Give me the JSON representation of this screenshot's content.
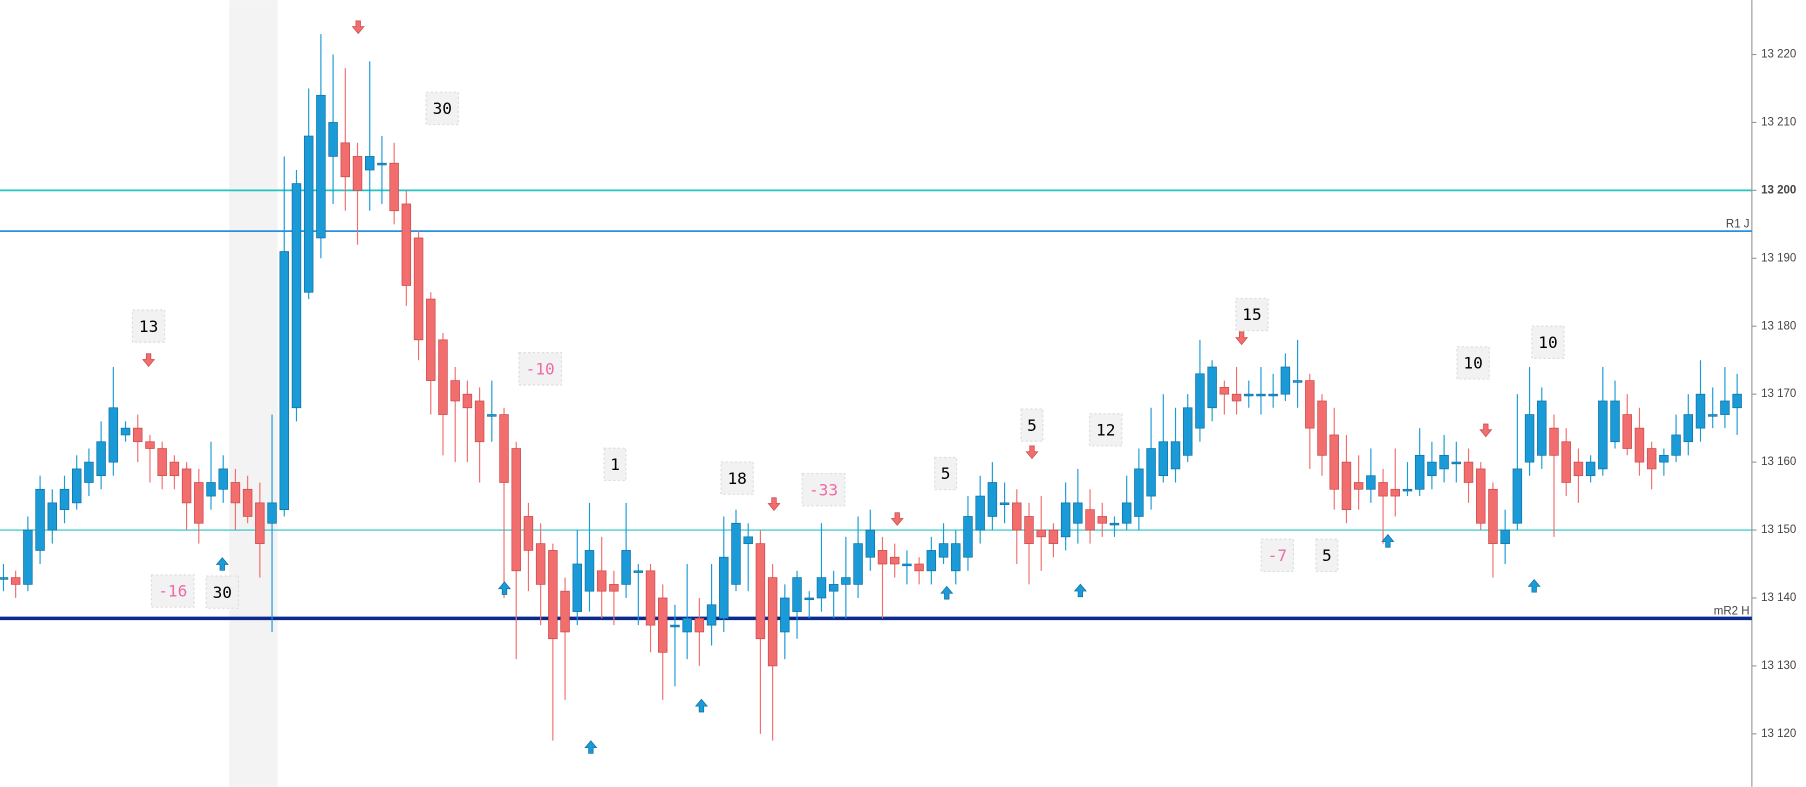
{
  "chart_data": {
    "type": "candlestick",
    "ylim": [
      13112.2,
      13228
    ],
    "yticks": [
      {
        "value": 13120,
        "label": "13 120"
      },
      {
        "value": 13130,
        "label": "13 130"
      },
      {
        "value": 13140,
        "label": "13 140"
      },
      {
        "value": 13150,
        "label": "13 150"
      },
      {
        "value": 13160,
        "label": "13 160"
      },
      {
        "value": 13170,
        "label": "13 170"
      },
      {
        "value": 13180,
        "label": "13 180"
      },
      {
        "value": 13190,
        "label": "13 190"
      },
      {
        "value": 13200,
        "label": "13 200"
      },
      {
        "value": 13210,
        "label": "13 210"
      },
      {
        "value": 13220,
        "label": "13 220"
      }
    ],
    "bold_tick": 13200,
    "up_color": "#1a9bd7",
    "down_color": "#f26d6d",
    "open": [
      13143,
      13143,
      13142,
      13147,
      13150,
      13153,
      13154,
      13157,
      13158,
      13160,
      13164,
      13165,
      13163,
      13162,
      13160,
      13159,
      13157,
      13155,
      13156,
      13157,
      13156,
      13154,
      13151,
      13153,
      13168,
      13185,
      13193,
      13205,
      13207,
      13205,
      13203,
      13204,
      13204,
      13198,
      13193,
      13184,
      13178,
      13172,
      13170,
      13169,
      13167,
      13167,
      13162,
      13152,
      13148,
      13147,
      13141,
      13138,
      13141,
      13144,
      13142,
      13142,
      13144,
      13144,
      13140,
      13136,
      13135,
      13137,
      13136,
      13137,
      13142,
      13148,
      13148,
      13143,
      13135,
      13138,
      13140,
      13140,
      13141,
      13142,
      13142,
      13146,
      13147,
      13146,
      13145,
      13145,
      13144,
      13146,
      13144,
      13146,
      13150,
      13152,
      13154,
      13154,
      13152,
      13150,
      13150,
      13149,
      13151,
      13153,
      13152,
      13151,
      13151,
      13152,
      13155,
      13158,
      13159,
      13161,
      13165,
      13168,
      13171,
      13170,
      13170,
      13170,
      13170,
      13170,
      13172,
      13172,
      13169,
      13164,
      13160,
      13157,
      13156,
      13157,
      13156,
      13156,
      13156,
      13158,
      13159,
      13160,
      13160,
      13159,
      13156,
      13148,
      13151,
      13160,
      13161,
      13165,
      13163,
      13160,
      13158,
      13159,
      13163,
      13167,
      13165,
      13162,
      13160,
      13161,
      13163,
      13165,
      13167,
      13167,
      13168
    ],
    "high": [
      13145,
      13144,
      13152,
      13158,
      13156,
      13158,
      13161,
      13162,
      13166,
      13174,
      13166,
      13167,
      13164,
      13163,
      13161,
      13160,
      13159,
      13163,
      13161,
      13159,
      13158,
      13157,
      13167,
      13205,
      13203,
      13215,
      13223,
      13220,
      13218,
      13207,
      13219,
      13208,
      13207,
      13200,
      13194,
      13185,
      13179,
      13174,
      13172,
      13171,
      13172,
      13168,
      13163,
      13154,
      13151,
      13148,
      13143,
      13150,
      13154,
      13149,
      13144,
      13154,
      13145,
      13145,
      13142,
      13139,
      13145,
      13140,
      13145,
      13152,
      13153,
      13151,
      13150,
      13145,
      13142,
      13144,
      13141,
      13151,
      13144,
      13149,
      13152,
      13153,
      13149,
      13148,
      13147,
      13146,
      13149,
      13151,
      13150,
      13155,
      13158,
      13160,
      13157,
      13156,
      13154,
      13155,
      13151,
      13157,
      13159,
      13156,
      13154,
      13152,
      13158,
      13162,
      13168,
      13170,
      13168,
      13170,
      13178,
      13175,
      13172,
      13174,
      13172,
      13174,
      13173,
      13176,
      13178,
      13173,
      13170,
      13168,
      13164,
      13161,
      13162,
      13159,
      13162,
      13160,
      13165,
      13163,
      13164,
      13163,
      13162,
      13160,
      13157,
      13153,
      13170,
      13174,
      13171,
      13167,
      13165,
      13162,
      13161,
      13174,
      13172,
      13170,
      13168,
      13163,
      13162,
      13167,
      13170,
      13175,
      13171,
      13174,
      13173
    ],
    "low": [
      13141,
      13140,
      13141,
      13145,
      13148,
      13151,
      13153,
      13155,
      13156,
      13158,
      13163,
      13160,
      13157,
      13156,
      13156,
      13150,
      13148,
      13153,
      13154,
      13150,
      13151,
      13143,
      13135,
      13152,
      13166,
      13184,
      13190,
      13198,
      13197,
      13192,
      13197,
      13198,
      13195,
      13183,
      13175,
      13167,
      13161,
      13160,
      13160,
      13157,
      13163,
      13140,
      13131,
      13141,
      13136,
      13119,
      13125,
      13136,
      13138,
      13137,
      13136,
      13140,
      13136,
      13132,
      13125,
      13127,
      13131,
      13130,
      13133,
      13135,
      13141,
      13141,
      13120,
      13119,
      13131,
      13134,
      13137,
      13138,
      13137,
      13137,
      13140,
      13144,
      13137,
      13143,
      13142,
      13142,
      13142,
      13145,
      13142,
      13144,
      13148,
      13150,
      13151,
      13145,
      13142,
      13144,
      13146,
      13147,
      13148,
      13148,
      13149,
      13149,
      13150,
      13150,
      13153,
      13157,
      13157,
      13160,
      13163,
      13166,
      13167,
      13167,
      13168,
      13167,
      13168,
      13169,
      13168,
      13159,
      13158,
      13153,
      13151,
      13153,
      13154,
      13148,
      13152,
      13155,
      13155,
      13156,
      13157,
      13157,
      13154,
      13150,
      13143,
      13145,
      13150,
      13158,
      13159,
      13149,
      13155,
      13154,
      13157,
      13158,
      13162,
      13161,
      13158,
      13156,
      13158,
      13160,
      13161,
      13163,
      13165,
      13165,
      13164
    ],
    "close": [
      13143,
      13142,
      13150,
      13156,
      13154,
      13156,
      13159,
      13160,
      13163,
      13168,
      13165,
      13163,
      13162,
      13158,
      13158,
      13154,
      13151,
      13157,
      13159,
      13154,
      13152,
      13148,
      13154,
      13191,
      13201,
      13208,
      13214,
      13210,
      13202,
      13200,
      13205,
      13204,
      13197,
      13186,
      13178,
      13172,
      13167,
      13169,
      13168,
      13163,
      13167,
      13157,
      13144,
      13147,
      13142,
      13134,
      13135,
      13145,
      13147,
      13141,
      13141,
      13147,
      13144,
      13136,
      13132,
      13136,
      13137,
      13135,
      13139,
      13146,
      13151,
      13149,
      13134,
      13130,
      13140,
      13143,
      13140,
      13143,
      13142,
      13143,
      13148,
      13150,
      13145,
      13145,
      13145,
      13144,
      13147,
      13148,
      13148,
      13152,
      13155,
      13157,
      13154,
      13150,
      13148,
      13149,
      13148,
      13154,
      13154,
      13150,
      13151,
      13151,
      13154,
      13159,
      13162,
      13163,
      13163,
      13168,
      13173,
      13174,
      13170,
      13169,
      13170,
      13170,
      13170,
      13174,
      13172,
      13165,
      13161,
      13156,
      13153,
      13156,
      13158,
      13155,
      13155,
      13156,
      13161,
      13160,
      13161,
      13160,
      13157,
      13151,
      13148,
      13150,
      13159,
      13167,
      13169,
      13161,
      13157,
      13158,
      13160,
      13169,
      13169,
      13162,
      13160,
      13159,
      13161,
      13164,
      13167,
      13170,
      13167,
      13169,
      13170
    ],
    "levels": [
      {
        "value": 13200,
        "color": "#22c3c3",
        "width": 1.5
      },
      {
        "value": 13194,
        "color": "#2a8fe0",
        "width": 1.5,
        "label": "R1 J"
      },
      {
        "value": 13150,
        "color": "#22c3c3",
        "width": 1
      },
      {
        "value": 13137,
        "color": "#0a2a8c",
        "width": 3,
        "label": "mR2 H"
      }
    ],
    "annotations": [
      {
        "text": "13",
        "color": "#000"
      },
      {
        "text": "-16",
        "color": "#f06aa8"
      },
      {
        "text": "30",
        "color": "#000"
      },
      {
        "text": "30",
        "color": "#000"
      },
      {
        "text": "-10",
        "color": "#f06aa8"
      },
      {
        "text": "1",
        "color": "#000"
      },
      {
        "text": "18",
        "color": "#000"
      },
      {
        "text": "-33",
        "color": "#f06aa8"
      },
      {
        "text": "5",
        "color": "#000"
      },
      {
        "text": "5",
        "color": "#000"
      },
      {
        "text": "12",
        "color": "#000"
      },
      {
        "text": "15",
        "color": "#000"
      },
      {
        "text": "-7",
        "color": "#f06aa8"
      },
      {
        "text": "5",
        "color": "#000"
      },
      {
        "text": "10",
        "color": "#000"
      },
      {
        "text": "10",
        "color": "#000"
      }
    ]
  }
}
